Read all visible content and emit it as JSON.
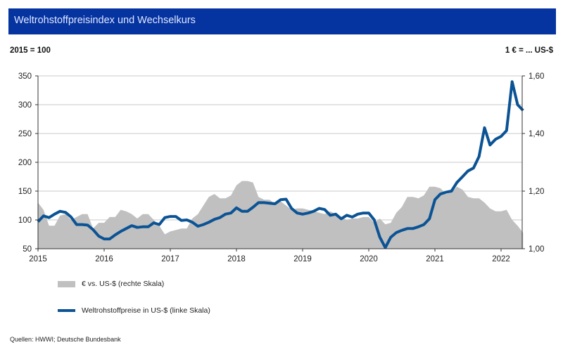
{
  "header": {
    "title": "Weltrohstoffpreisindex und Wechselkurs"
  },
  "left_unit": "2015 = 100",
  "right_unit": "1 € = ... US-$",
  "source": "Quellen: HWWI; Deutsche Bundesbank",
  "colors": {
    "header": "#0533a0",
    "index_line": "#0b5394",
    "fx_area": "#c0c0c0"
  },
  "chart_data": {
    "type": "line+area",
    "title": "Weltrohstoffpreisindex und Wechselkurs",
    "x_ticks": [
      "2015",
      "2016",
      "2017",
      "2018",
      "2019",
      "2020",
      "2021",
      "2022"
    ],
    "x_start": "2015-01",
    "frequency": "monthly",
    "left_axis": {
      "label": "2015 = 100",
      "ylim": [
        50,
        350
      ],
      "ticks": [
        "50",
        "100",
        "150",
        "200",
        "250",
        "300",
        "350"
      ]
    },
    "right_axis": {
      "label": "1 € = ... US-$",
      "ylim": [
        1.0,
        1.6
      ],
      "ticks": [
        "1,00",
        "1,20",
        "1,40",
        "1,60"
      ]
    },
    "grid": true,
    "legend_position": "bottom-left",
    "series": [
      {
        "name": "€ vs. US-$ (rechte Skala)",
        "type": "area",
        "axis": "right",
        "values": [
          1.16,
          1.135,
          1.08,
          1.08,
          1.115,
          1.12,
          1.1,
          1.11,
          1.12,
          1.12,
          1.07,
          1.09,
          1.09,
          1.11,
          1.11,
          1.135,
          1.13,
          1.12,
          1.105,
          1.12,
          1.12,
          1.1,
          1.08,
          1.05,
          1.06,
          1.065,
          1.07,
          1.07,
          1.105,
          1.12,
          1.15,
          1.18,
          1.19,
          1.175,
          1.175,
          1.185,
          1.22,
          1.235,
          1.235,
          1.23,
          1.18,
          1.17,
          1.17,
          1.155,
          1.165,
          1.15,
          1.135,
          1.14,
          1.14,
          1.135,
          1.13,
          1.125,
          1.12,
          1.13,
          1.12,
          1.11,
          1.1,
          1.105,
          1.105,
          1.11,
          1.11,
          1.09,
          1.105,
          1.085,
          1.09,
          1.125,
          1.145,
          1.18,
          1.18,
          1.175,
          1.185,
          1.215,
          1.215,
          1.21,
          1.19,
          1.195,
          1.215,
          1.205,
          1.18,
          1.175,
          1.175,
          1.16,
          1.14,
          1.13,
          1.13,
          1.135,
          1.1,
          1.08,
          1.055
        ]
      },
      {
        "name": "Weltrohstoffpreise in US-$ (linke Skala)",
        "type": "line",
        "axis": "left",
        "values": [
          97,
          107,
          104,
          110,
          115,
          113,
          105,
          92,
          92,
          91,
          83,
          72,
          67,
          67,
          74,
          80,
          85,
          90,
          87,
          88,
          88,
          95,
          92,
          104,
          106,
          106,
          99,
          100,
          96,
          89,
          92,
          96,
          101,
          104,
          110,
          112,
          121,
          115,
          115,
          122,
          130,
          130,
          129,
          128,
          135,
          136,
          120,
          112,
          110,
          112,
          115,
          120,
          118,
          108,
          110,
          102,
          108,
          105,
          110,
          112,
          112,
          100,
          70,
          52,
          70,
          78,
          82,
          85,
          85,
          88,
          92,
          102,
          135,
          145,
          148,
          150,
          165,
          175,
          185,
          190,
          210,
          260,
          230,
          240,
          245,
          255,
          340,
          300,
          290
        ]
      }
    ]
  }
}
